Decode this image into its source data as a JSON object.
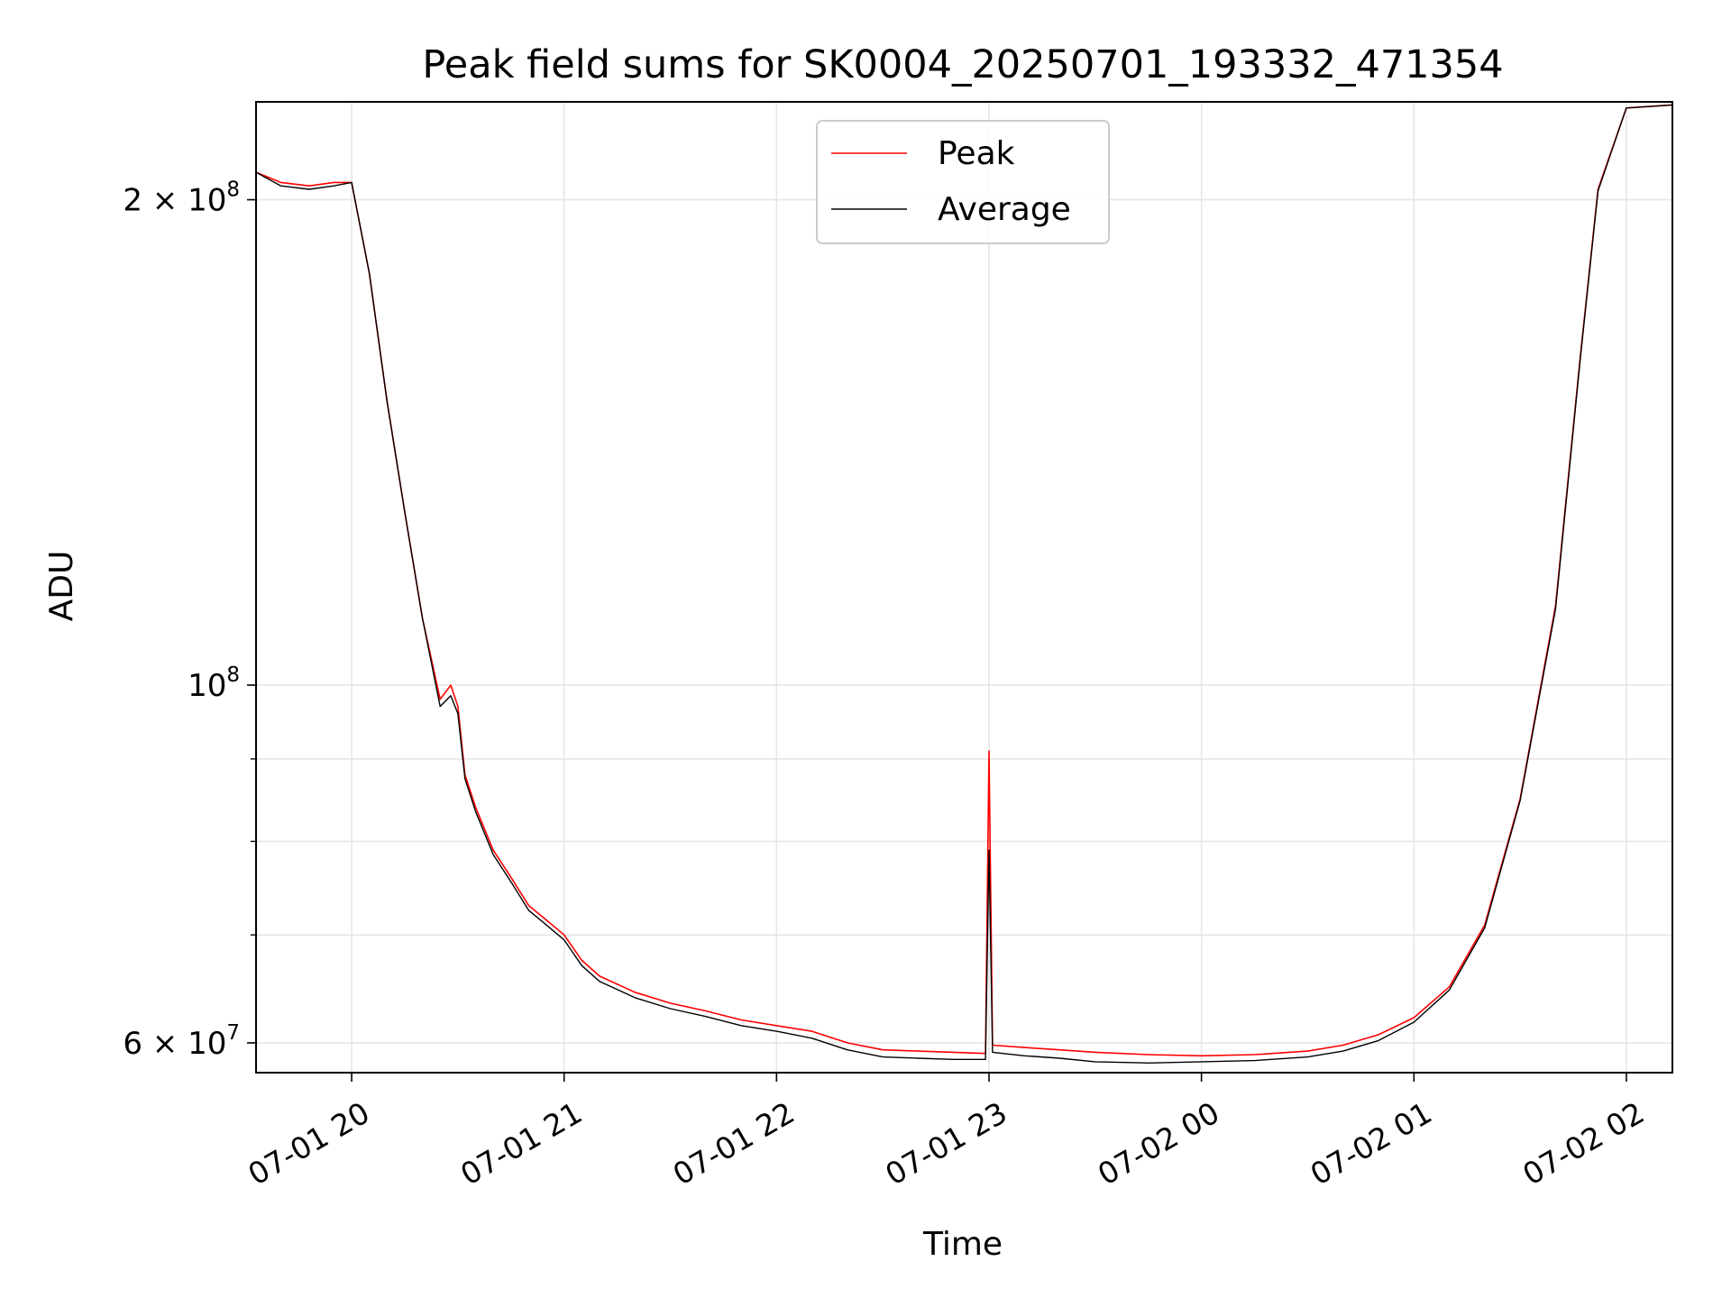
{
  "chart_data": {
    "type": "line",
    "title": "Peak field sums for SK0004_20250701_193332_471354",
    "xlabel": "Time",
    "ylabel": "ADU",
    "yscale": "log",
    "xlim": [
      "2025-07-01 19:33",
      "2025-07-02 02:13"
    ],
    "ylim": [
      57500000,
      230000000
    ],
    "grid": true,
    "legend_position": "upper center",
    "x_ticks": [
      {
        "value": "2025-07-01 20:00",
        "label": "07-01 20"
      },
      {
        "value": "2025-07-01 21:00",
        "label": "07-01 21"
      },
      {
        "value": "2025-07-01 22:00",
        "label": "07-01 22"
      },
      {
        "value": "2025-07-01 23:00",
        "label": "07-01 23"
      },
      {
        "value": "2025-07-02 00:00",
        "label": "07-02 00"
      },
      {
        "value": "2025-07-02 01:00",
        "label": "07-02 01"
      },
      {
        "value": "2025-07-02 02:00",
        "label": "07-02 02"
      }
    ],
    "y_ticks_major": [
      {
        "value": 200000000,
        "mantissa": "2",
        "times": "×",
        "base": "10",
        "exp": "8"
      },
      {
        "value": 100000000,
        "mantissa": "",
        "times": "",
        "base": "10",
        "exp": "8"
      },
      {
        "value": 60000000,
        "mantissa": "6",
        "times": "×",
        "base": "10",
        "exp": "7"
      }
    ],
    "y_ticks_minor": [
      70000000,
      80000000,
      90000000
    ],
    "series": [
      {
        "name": "Peak",
        "color": "#ff0000",
        "x": [
          "2025-07-01 19:33",
          "2025-07-01 19:40",
          "2025-07-01 19:48",
          "2025-07-01 19:55",
          "2025-07-01 20:00",
          "2025-07-01 20:05",
          "2025-07-01 20:10",
          "2025-07-01 20:15",
          "2025-07-01 20:20",
          "2025-07-01 20:25",
          "2025-07-01 20:28",
          "2025-07-01 20:30",
          "2025-07-01 20:32",
          "2025-07-01 20:35",
          "2025-07-01 20:40",
          "2025-07-01 20:45",
          "2025-07-01 20:50",
          "2025-07-01 20:55",
          "2025-07-01 21:00",
          "2025-07-01 21:05",
          "2025-07-01 21:10",
          "2025-07-01 21:20",
          "2025-07-01 21:30",
          "2025-07-01 21:40",
          "2025-07-01 21:50",
          "2025-07-01 22:00",
          "2025-07-01 22:10",
          "2025-07-01 22:20",
          "2025-07-01 22:30",
          "2025-07-01 22:40",
          "2025-07-01 22:50",
          "2025-07-01 22:59",
          "2025-07-01 23:00",
          "2025-07-01 23:01",
          "2025-07-01 23:10",
          "2025-07-01 23:20",
          "2025-07-01 23:30",
          "2025-07-01 23:45",
          "2025-07-02 00:00",
          "2025-07-02 00:15",
          "2025-07-02 00:30",
          "2025-07-02 00:40",
          "2025-07-02 00:50",
          "2025-07-02 01:00",
          "2025-07-02 01:10",
          "2025-07-02 01:20",
          "2025-07-02 01:30",
          "2025-07-02 01:40",
          "2025-07-02 01:47",
          "2025-07-02 01:52",
          "2025-07-02 02:00",
          "2025-07-02 02:13"
        ],
        "y": [
          208000000,
          205000000,
          204000000,
          205000000,
          205000000,
          180000000,
          150000000,
          128000000,
          110000000,
          98000000,
          100000000,
          97000000,
          88000000,
          84000000,
          79000000,
          76000000,
          73000000,
          71500000,
          70000000,
          67500000,
          66000000,
          64500000,
          63500000,
          62800000,
          62000000,
          61500000,
          61000000,
          60000000,
          59400000,
          59300000,
          59200000,
          59100000,
          91000000,
          59800000,
          59600000,
          59400000,
          59200000,
          59000000,
          58900000,
          59000000,
          59300000,
          59800000,
          60700000,
          62200000,
          65000000,
          71000000,
          85000000,
          112000000,
          160000000,
          203000000,
          228000000,
          229000000
        ]
      },
      {
        "name": "Average",
        "color": "#000000",
        "x": [
          "2025-07-01 19:33",
          "2025-07-01 19:40",
          "2025-07-01 19:48",
          "2025-07-01 19:55",
          "2025-07-01 20:00",
          "2025-07-01 20:05",
          "2025-07-01 20:10",
          "2025-07-01 20:15",
          "2025-07-01 20:20",
          "2025-07-01 20:25",
          "2025-07-01 20:28",
          "2025-07-01 20:30",
          "2025-07-01 20:32",
          "2025-07-01 20:35",
          "2025-07-01 20:40",
          "2025-07-01 20:45",
          "2025-07-01 20:50",
          "2025-07-01 20:55",
          "2025-07-01 21:00",
          "2025-07-01 21:05",
          "2025-07-01 21:10",
          "2025-07-01 21:20",
          "2025-07-01 21:30",
          "2025-07-01 21:40",
          "2025-07-01 21:50",
          "2025-07-01 22:00",
          "2025-07-01 22:10",
          "2025-07-01 22:20",
          "2025-07-01 22:30",
          "2025-07-01 22:40",
          "2025-07-01 22:50",
          "2025-07-01 22:59",
          "2025-07-01 23:00",
          "2025-07-01 23:01",
          "2025-07-01 23:10",
          "2025-07-01 23:20",
          "2025-07-01 23:30",
          "2025-07-01 23:45",
          "2025-07-02 00:00",
          "2025-07-02 00:15",
          "2025-07-02 00:30",
          "2025-07-02 00:40",
          "2025-07-02 00:50",
          "2025-07-02 01:00",
          "2025-07-02 01:10",
          "2025-07-02 01:20",
          "2025-07-02 01:30",
          "2025-07-02 01:40",
          "2025-07-02 01:47",
          "2025-07-02 01:52",
          "2025-07-02 02:00",
          "2025-07-02 02:13"
        ],
        "y": [
          208000000,
          204000000,
          203000000,
          204000000,
          205000000,
          180000000,
          150000000,
          128000000,
          110000000,
          97000000,
          98500000,
          96000000,
          87500000,
          83500000,
          78500000,
          75500000,
          72500000,
          71000000,
          69500000,
          67000000,
          65500000,
          64000000,
          63000000,
          62300000,
          61500000,
          61000000,
          60400000,
          59400000,
          58800000,
          58700000,
          58600000,
          58600000,
          79000000,
          59200000,
          58900000,
          58700000,
          58400000,
          58300000,
          58400000,
          58500000,
          58800000,
          59300000,
          60200000,
          61800000,
          64700000,
          70700000,
          84800000,
          111500000,
          159500000,
          202500000,
          228000000,
          229000000
        ]
      }
    ]
  }
}
